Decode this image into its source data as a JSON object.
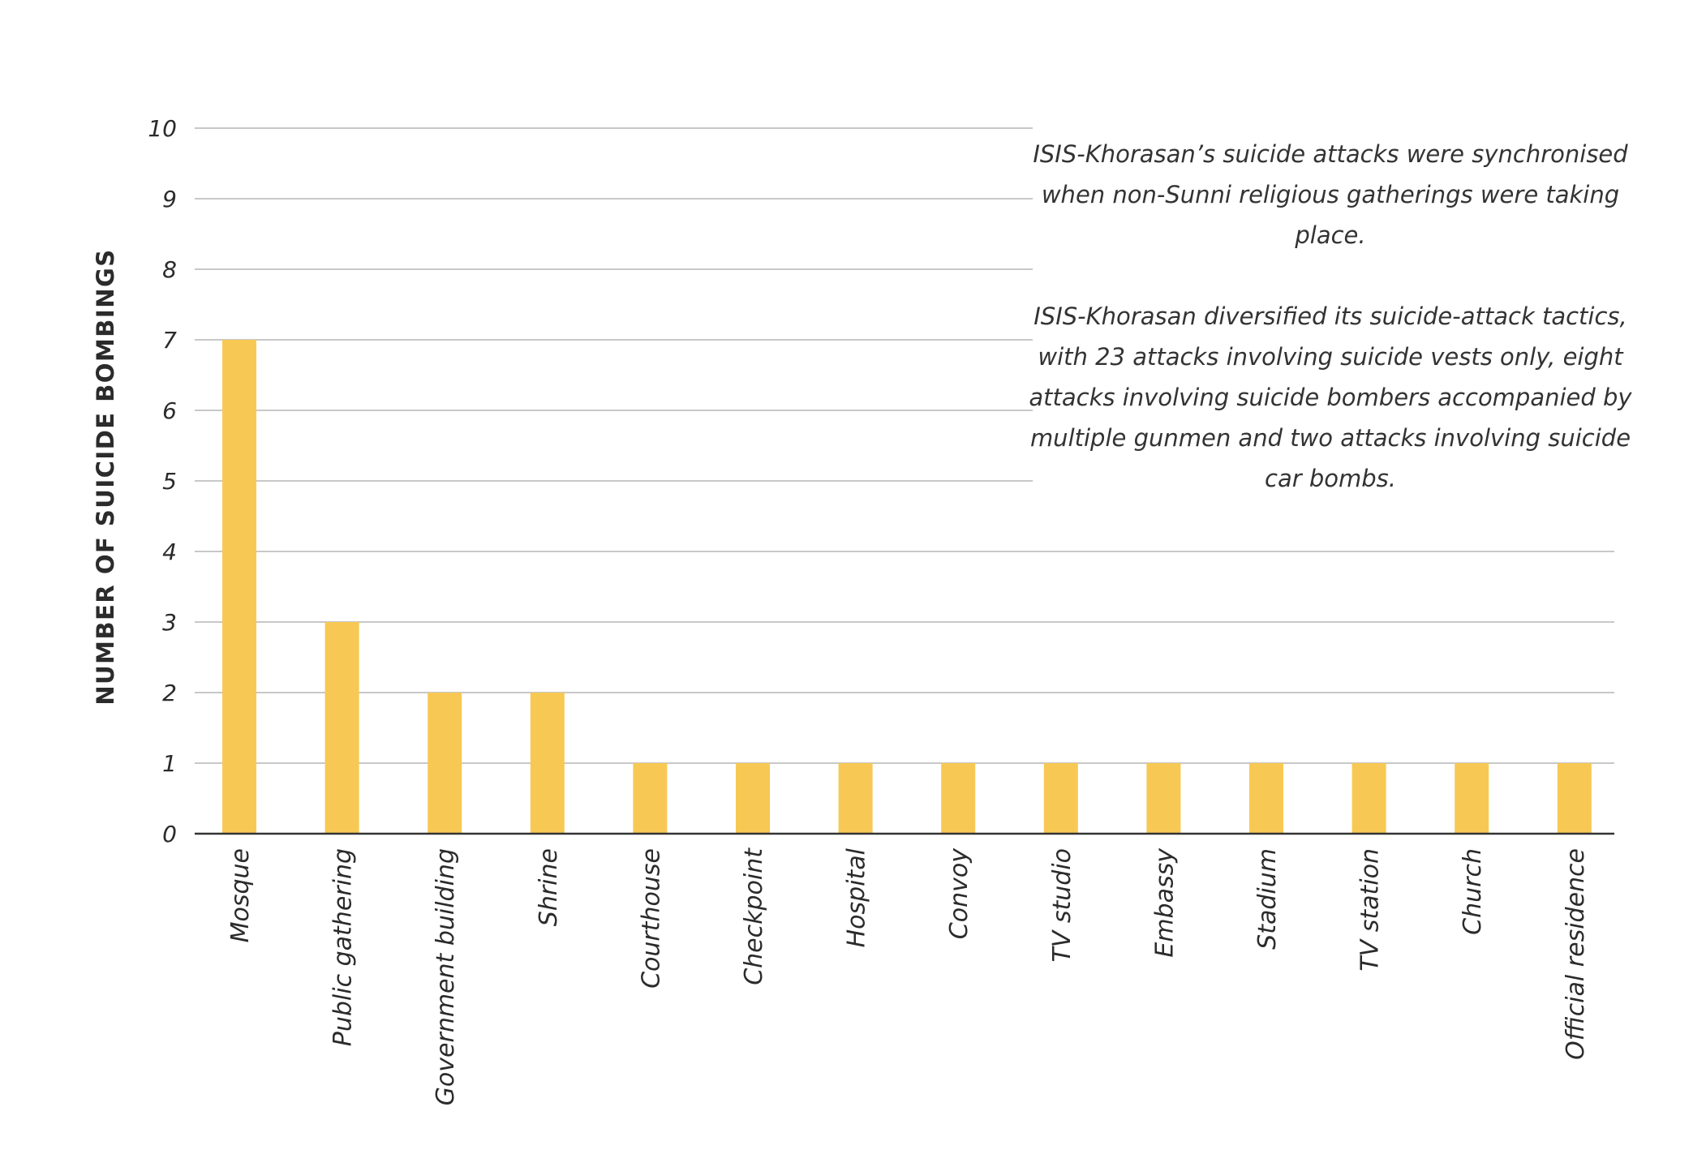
{
  "colors": {
    "bar": "#F7C954",
    "grid": "#C8C8C8",
    "axis": "#333333",
    "text": "#2b2b2b"
  },
  "chart_data": {
    "type": "bar",
    "title": "",
    "xlabel": "",
    "ylabel": "NUMBER OF SUICIDE BOMBINGS",
    "ylim": [
      0,
      10
    ],
    "yticks": [
      0,
      1,
      2,
      3,
      4,
      5,
      6,
      7,
      8,
      9,
      10
    ],
    "grid": true,
    "categories": [
      "Mosque",
      "Public gathering",
      "Government building",
      "Shrine",
      "Courthouse",
      "Checkpoint",
      "Hospital",
      "Convoy",
      "TV studio",
      "Embassy",
      "Stadium",
      "TV station",
      "Church",
      "Official residence"
    ],
    "values": [
      7,
      3,
      2,
      2,
      1,
      1,
      1,
      1,
      1,
      1,
      1,
      1,
      1,
      1
    ]
  },
  "annotation": {
    "paragraph1": "ISIS-Khorasan’s suicide attacks were synchronised when non-Sunni religious gatherings were taking place.",
    "paragraph2": "ISIS-Khorasan diversified its suicide-attack tactics, with 23 attacks involving suicide vests only, eight attacks involving suicide bombers accompanied by multiple gunmen and two attacks involving suicide car bombs."
  }
}
